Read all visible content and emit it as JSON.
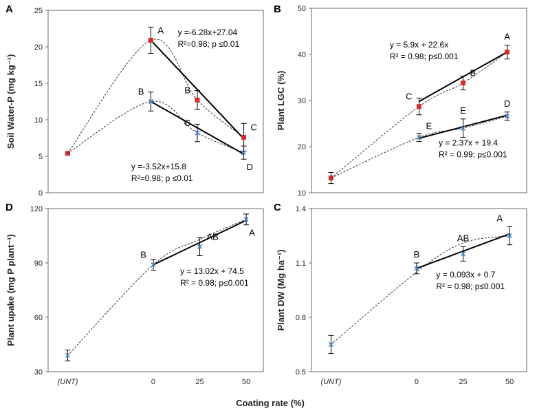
{
  "figure": {
    "x_title": "Coating rate (%)"
  },
  "colors": {
    "red_series": "#d0312d",
    "blue_series": "#4a86c8",
    "axis": "#444444"
  },
  "chart_data": [
    {
      "id": "A",
      "panel_label": "A",
      "type": "line",
      "ylabel": "Soil Water-P (mg kg⁻¹)",
      "ylim": [
        0,
        25
      ],
      "yticks": [
        0,
        5,
        10,
        15,
        20,
        25
      ],
      "xticks": [],
      "xlim": [
        -2.2,
        2.2
      ],
      "series": [
        {
          "name": "red",
          "marker": "square",
          "color": "#d0312d",
          "x": [
            -1.8,
            -0.1,
            0.85,
            1.8
          ],
          "values": [
            5.4,
            20.9,
            12.7,
            7.6
          ],
          "errors": [
            0,
            1.8,
            1.3,
            1.9
          ],
          "letters": [
            "",
            "A",
            "B",
            "C"
          ],
          "letter_pos": [
            "",
            "right",
            "left",
            "right"
          ],
          "fit_line": {
            "x": [
              -0.1,
              1.8
            ],
            "y": [
              20.9,
              7.4
            ]
          },
          "curve_x": [
            -1.8,
            -0.1,
            0.85,
            1.8
          ],
          "curve_y": [
            5.4,
            20.9,
            12.7,
            7.6
          ]
        },
        {
          "name": "blue",
          "marker": "x",
          "color": "#4a86c8",
          "x": [
            -0.1,
            0.85,
            1.8
          ],
          "values": [
            12.5,
            8.2,
            5.5
          ],
          "errors": [
            1.3,
            1.2,
            0.9
          ],
          "letters": [
            "B",
            "C",
            "D"
          ],
          "letter_pos": [
            "left",
            "left",
            "below"
          ],
          "fit_line": {
            "x": [
              -0.1,
              1.8
            ],
            "y": [
              12.5,
              5.3
            ]
          },
          "curve_x": [
            -1.8,
            -0.1,
            0.85,
            1.8
          ],
          "curve_y": [
            5.4,
            12.5,
            8.2,
            5.5
          ]
        }
      ],
      "annotations": [
        {
          "line1": "y =-6.28x+27.04",
          "line2": "R²=0.98; p ≤0.01",
          "x": 0.45,
          "y": 21.6
        },
        {
          "line1": "y =-3.52x+15.8",
          "line2": "R²=0.98; p ≤0.01",
          "x": -0.5,
          "y": 3.2
        }
      ]
    },
    {
      "id": "B",
      "panel_label": "B",
      "type": "line",
      "ylabel": "Plant LGC (%)",
      "ylim": [
        10,
        50
      ],
      "yticks": [
        10,
        20,
        30,
        40,
        50
      ],
      "xticks": [],
      "xlim": [
        -2.2,
        2.2
      ],
      "series": [
        {
          "name": "red",
          "marker": "square",
          "color": "#d0312d",
          "x": [
            -1.8,
            0.0,
            0.9,
            1.8
          ],
          "values": [
            13.2,
            28.7,
            33.8,
            40.5
          ],
          "errors": [
            1.2,
            1.8,
            1.5,
            1.5
          ],
          "letters": [
            "",
            "C",
            "B",
            "A"
          ],
          "letter_pos": [
            "",
            "left",
            "right",
            "above"
          ],
          "fit_line": {
            "x": [
              0.0,
              1.8
            ],
            "y": [
              29.8,
              40.5
            ]
          },
          "curve_x": [
            -1.8,
            0.0,
            0.9,
            1.8
          ],
          "curve_y": [
            13.2,
            28.7,
            33.8,
            40.5
          ]
        },
        {
          "name": "blue",
          "marker": "x",
          "color": "#4a86c8",
          "x": [
            0.0,
            0.9,
            1.8
          ],
          "values": [
            22.0,
            24.0,
            26.6
          ],
          "errors": [
            0.9,
            2.0,
            0.9
          ],
          "letters": [
            "E",
            "E",
            "D"
          ],
          "letter_pos": [
            "aboveright",
            "above",
            "above"
          ],
          "fit_line": {
            "x": [
              0.0,
              1.8
            ],
            "y": [
              21.8,
              26.8
            ]
          },
          "curve_x": [
            -1.8,
            0.0,
            0.9,
            1.8
          ],
          "curve_y": [
            13.2,
            22.0,
            24.0,
            26.6
          ]
        }
      ],
      "annotations": [
        {
          "line1": "y = 5.9x + 22.6x",
          "line2": "R² = 0.98; p≤0.001",
          "x": -0.6,
          "y": 41.5,
          "italic_p": true
        },
        {
          "line1": "y = 2.37x + 19.4",
          "line2": "R² = 0.99; p≤0.001",
          "x": 0.4,
          "y": 20.2,
          "italic_p": true
        }
      ]
    },
    {
      "id": "D",
      "panel_label": "D",
      "type": "line",
      "ylabel": "Plant upake (mg P plant⁻¹)",
      "ylim": [
        30,
        120
      ],
      "yticks": [
        30,
        60,
        90,
        120
      ],
      "xticks": [
        {
          "label": "(UNT)",
          "x": -1.8,
          "italic": true
        },
        {
          "label": "0",
          "x": -0.05
        },
        {
          "label": "25",
          "x": 0.9
        },
        {
          "label": "50",
          "x": 1.85
        }
      ],
      "xlim": [
        -2.2,
        2.2
      ],
      "series": [
        {
          "name": "blue",
          "marker": "x",
          "color": "#4a86c8",
          "x": [
            -1.8,
            -0.05,
            0.9,
            1.85
          ],
          "values": [
            39,
            89,
            99,
            114
          ],
          "errors": [
            3,
            3,
            5,
            3
          ],
          "letters": [
            "",
            "B",
            "AB",
            "A"
          ],
          "letter_pos": [
            "",
            "left",
            "right",
            "below"
          ],
          "fit_line": {
            "x": [
              -0.05,
              1.85
            ],
            "y": [
              89,
              113.5
            ]
          },
          "curve_x": [
            -1.8,
            -0.05,
            0.9,
            1.85
          ],
          "curve_y": [
            39,
            89,
            103,
            114
          ]
        }
      ],
      "annotations": [
        {
          "line1": "y = 13.02x + 74.5",
          "line2": "R² = 0.98; p≤0.001",
          "x": 0.5,
          "y": 84,
          "italic_p": true
        }
      ]
    },
    {
      "id": "C",
      "panel_label": "C",
      "type": "line",
      "ylabel": "Plant DW (Mg ha⁻¹)",
      "ylim": [
        0.5,
        1.4
      ],
      "yticks": [
        0.5,
        0.8,
        1.1,
        1.4
      ],
      "xticks": [
        {
          "label": "(UNT)",
          "x": -1.8,
          "italic": true
        },
        {
          "label": "0",
          "x": -0.05
        },
        {
          "label": "25",
          "x": 0.9
        },
        {
          "label": "50",
          "x": 1.85
        }
      ],
      "xlim": [
        -2.2,
        2.2
      ],
      "series": [
        {
          "name": "blue",
          "marker": "x",
          "color": "#4a86c8",
          "x": [
            -1.8,
            -0.05,
            0.9,
            1.85
          ],
          "values": [
            0.65,
            1.07,
            1.15,
            1.25
          ],
          "errors": [
            0.05,
            0.03,
            0.04,
            0.05
          ],
          "letters": [
            "",
            "B",
            "AB",
            "A"
          ],
          "letter_pos": [
            "",
            "above",
            "above",
            "aboveleft"
          ],
          "fit_line": {
            "x": [
              -0.05,
              1.85
            ],
            "y": [
              1.07,
              1.26
            ]
          },
          "curve_x": [
            -1.8,
            -0.05,
            0.9,
            1.85
          ],
          "curve_y": [
            0.65,
            1.05,
            1.21,
            1.25
          ]
        }
      ],
      "annotations": [
        {
          "line1": "y = 0.093x + 0.7",
          "line2": "R² = 0.98; p≤0.001",
          "x": 0.35,
          "y": 1.02,
          "italic_p": true
        }
      ]
    }
  ]
}
